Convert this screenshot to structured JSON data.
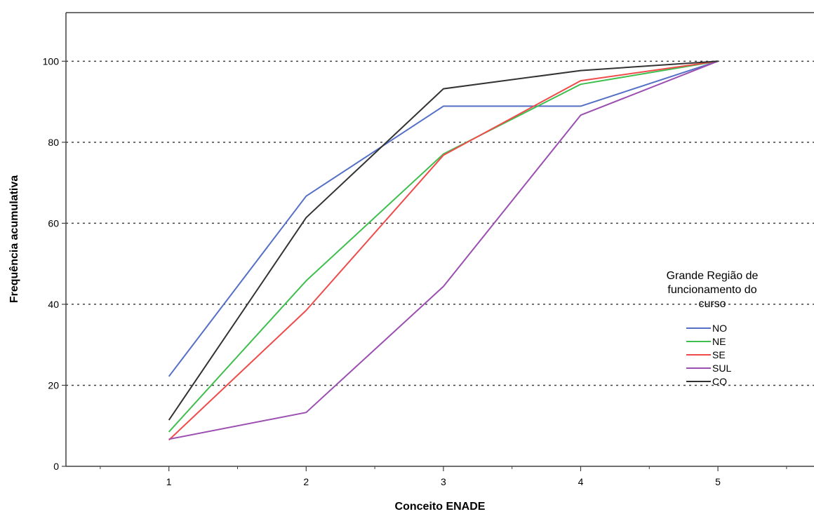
{
  "chart_data": {
    "type": "line",
    "xlabel": "Conceito ENADE",
    "ylabel": "Frequência acumulativa",
    "x": [
      1,
      2,
      3,
      4,
      5
    ],
    "xlim": [
      0.25,
      5.7
    ],
    "ylim": [
      0,
      112
    ],
    "yticks": [
      0,
      20,
      40,
      60,
      80,
      100
    ],
    "grid": "horizontal dotted at 20, 40, 60, 80, 100",
    "legend": {
      "title_lines": [
        "Grande Região de",
        "funcionamento do",
        "curso"
      ],
      "placement": "right"
    },
    "series": [
      {
        "name": "NO",
        "color": "#5470c6",
        "values": [
          22.2,
          66.7,
          88.9,
          88.9,
          100
        ]
      },
      {
        "name": "NE",
        "color": "#3fbf4f",
        "values": [
          8.5,
          45.8,
          77.1,
          94.3,
          100
        ]
      },
      {
        "name": "SE",
        "color": "#f04b4b",
        "values": [
          6.5,
          38.5,
          76.8,
          95.2,
          100
        ]
      },
      {
        "name": "SUL",
        "color": "#9b4fb0",
        "values": [
          6.7,
          13.3,
          44.4,
          86.7,
          100
        ]
      },
      {
        "name": "CO",
        "color": "#333333",
        "values": [
          11.4,
          61.4,
          93.2,
          97.7,
          100
        ]
      }
    ]
  }
}
